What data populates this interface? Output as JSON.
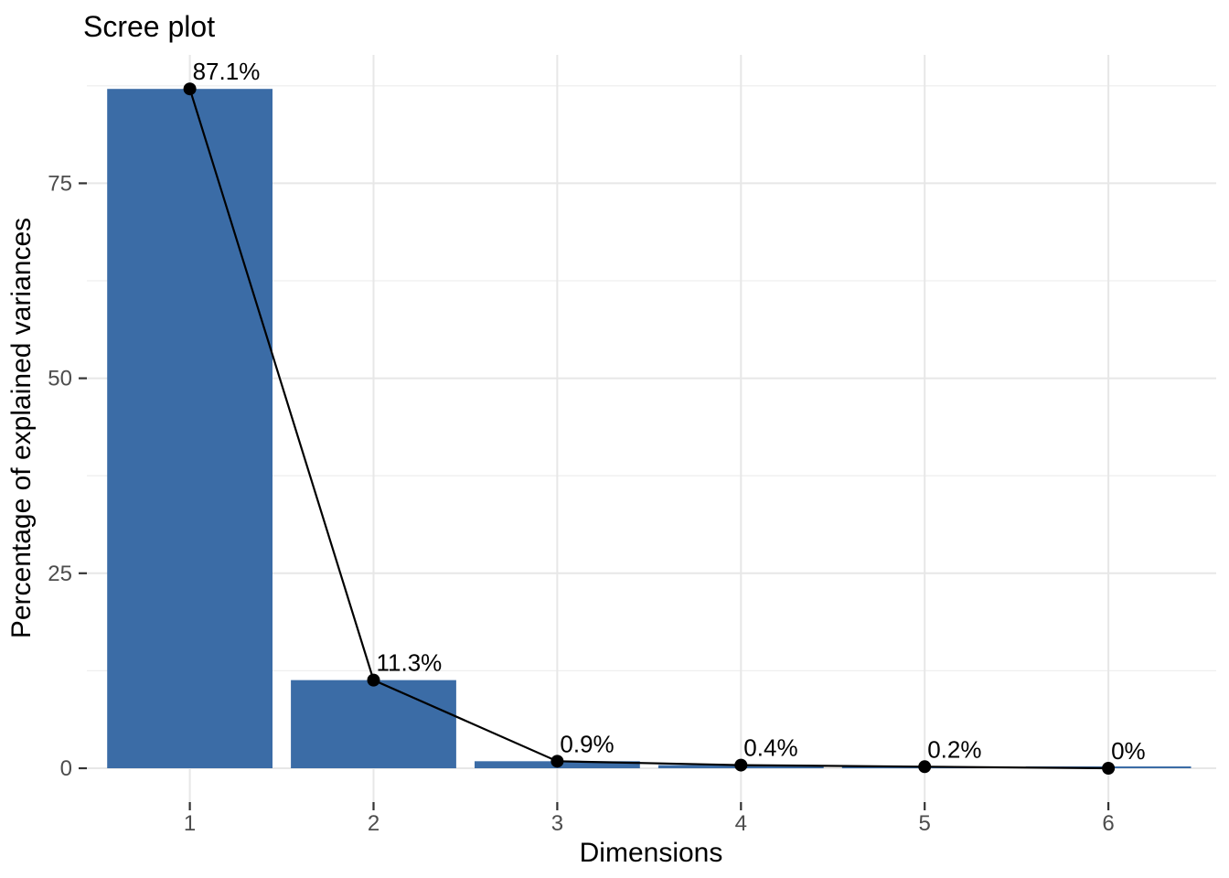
{
  "chart_data": {
    "type": "bar",
    "overlay": "line-with-points",
    "title": "Scree plot",
    "xlabel": "Dimensions",
    "ylabel": "Percentage of explained variances",
    "categories": [
      "1",
      "2",
      "3",
      "4",
      "5",
      "6"
    ],
    "values": [
      87.1,
      11.3,
      0.9,
      0.4,
      0.2,
      0
    ],
    "point_labels": [
      "87.1%",
      "11.3%",
      "0.9%",
      "0.4%",
      "0.2%",
      "0%"
    ],
    "yticks": [
      0,
      25,
      50,
      75
    ],
    "yticks_minor": [
      12.5,
      37.5,
      62.5,
      87.5
    ],
    "ylim": [
      0,
      91.5
    ],
    "grid": "horizontal major+minor, vertical major only",
    "legend": "none",
    "colors": {
      "bar_fill": "#3B6CA6",
      "line": "#000000",
      "point": "#000000",
      "grid_major": "#E7E7E7",
      "grid_minor": "#EFEFEF",
      "axis_tick": "#333333",
      "tick_label": "#4D4D4D",
      "text": "#000000",
      "background": "#FFFFFF"
    }
  }
}
